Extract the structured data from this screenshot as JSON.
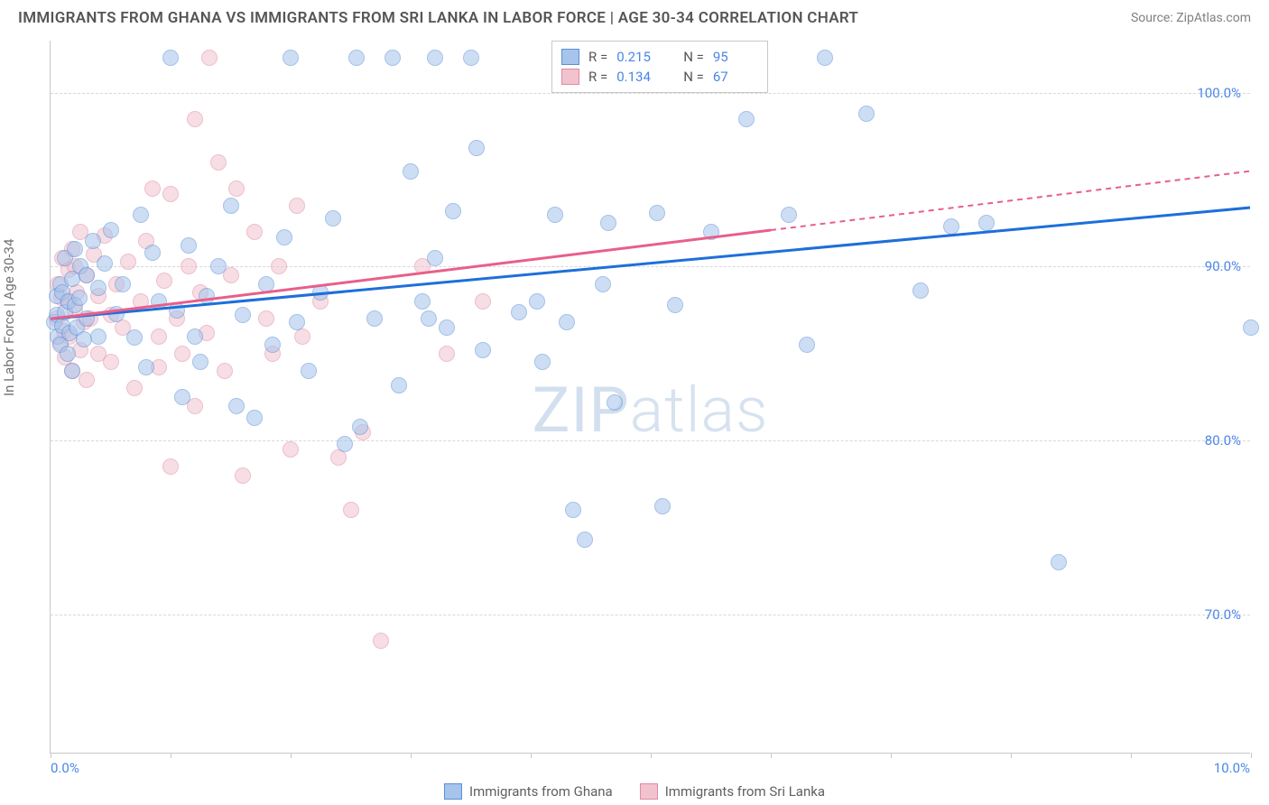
{
  "title": "IMMIGRANTS FROM GHANA VS IMMIGRANTS FROM SRI LANKA IN LABOR FORCE | AGE 30-34 CORRELATION CHART",
  "source": "Source: ZipAtlas.com",
  "y_axis_label": "In Labor Force | Age 30-34",
  "watermark_bold": "ZIP",
  "watermark_light": "atlas",
  "chart": {
    "type": "scatter",
    "xlim": [
      0,
      10
    ],
    "ylim": [
      62,
      103
    ],
    "x_ticks": [
      0,
      1,
      2,
      3,
      4,
      5,
      6,
      7,
      8,
      9,
      10
    ],
    "x_tick_labels_shown": {
      "0": "0.0%",
      "10": "10.0%"
    },
    "y_ticks": [
      70,
      80,
      90,
      100
    ],
    "y_tick_labels": [
      "70.0%",
      "80.0%",
      "90.0%",
      "100.0%"
    ],
    "background_color": "#ffffff",
    "grid_color": "#d8d8d8",
    "axis_color": "#c8c8c8",
    "marker_radius": 9,
    "marker_opacity": 0.55,
    "marker_border_width": 1
  },
  "series": [
    {
      "name": "Immigrants from Ghana",
      "fill_color": "#a6c4ec",
      "border_color": "#5b8fd6",
      "line_color": "#1e6fd9",
      "r_value": "0.215",
      "n_value": "95",
      "trend": {
        "x1": 0,
        "y1": 87.0,
        "x2": 10,
        "y2": 93.4,
        "dashed_from_x": null
      },
      "points": [
        [
          0.03,
          86.8
        ],
        [
          0.05,
          87.2
        ],
        [
          0.05,
          88.3
        ],
        [
          0.06,
          86.0
        ],
        [
          0.08,
          89.0
        ],
        [
          0.08,
          85.5
        ],
        [
          0.1,
          88.5
        ],
        [
          0.1,
          86.6
        ],
        [
          0.12,
          87.4
        ],
        [
          0.12,
          90.5
        ],
        [
          0.14,
          85.0
        ],
        [
          0.15,
          88.0
        ],
        [
          0.16,
          86.2
        ],
        [
          0.18,
          89.3
        ],
        [
          0.18,
          84.0
        ],
        [
          0.2,
          87.8
        ],
        [
          0.2,
          91.0
        ],
        [
          0.22,
          86.5
        ],
        [
          0.24,
          88.2
        ],
        [
          0.25,
          90.0
        ],
        [
          0.28,
          85.8
        ],
        [
          0.3,
          87.0
        ],
        [
          0.3,
          89.5
        ],
        [
          0.35,
          91.5
        ],
        [
          0.4,
          86.0
        ],
        [
          0.4,
          88.8
        ],
        [
          0.45,
          90.2
        ],
        [
          0.5,
          92.1
        ],
        [
          0.55,
          87.3
        ],
        [
          0.6,
          89.0
        ],
        [
          0.7,
          85.9
        ],
        [
          0.75,
          93.0
        ],
        [
          0.8,
          84.2
        ],
        [
          0.85,
          90.8
        ],
        [
          0.9,
          88.0
        ],
        [
          1.0,
          102.0
        ],
        [
          1.05,
          87.5
        ],
        [
          1.1,
          82.5
        ],
        [
          1.15,
          91.2
        ],
        [
          1.2,
          86.0
        ],
        [
          1.25,
          84.5
        ],
        [
          1.3,
          88.3
        ],
        [
          1.4,
          90.0
        ],
        [
          1.5,
          93.5
        ],
        [
          1.55,
          82.0
        ],
        [
          1.6,
          87.2
        ],
        [
          1.7,
          81.3
        ],
        [
          1.8,
          89.0
        ],
        [
          1.85,
          85.5
        ],
        [
          1.95,
          91.7
        ],
        [
          2.0,
          102.0
        ],
        [
          2.05,
          86.8
        ],
        [
          2.15,
          84.0
        ],
        [
          2.25,
          88.5
        ],
        [
          2.35,
          92.8
        ],
        [
          2.45,
          79.8
        ],
        [
          2.55,
          102.0
        ],
        [
          2.58,
          80.8
        ],
        [
          2.7,
          87.0
        ],
        [
          2.85,
          102.0
        ],
        [
          2.9,
          83.2
        ],
        [
          3.0,
          95.5
        ],
        [
          3.1,
          88.0
        ],
        [
          3.2,
          102.0
        ],
        [
          3.15,
          87.0
        ],
        [
          3.2,
          90.5
        ],
        [
          3.3,
          86.5
        ],
        [
          3.35,
          93.2
        ],
        [
          3.5,
          102.0
        ],
        [
          3.55,
          96.8
        ],
        [
          3.6,
          85.2
        ],
        [
          3.9,
          87.4
        ],
        [
          4.05,
          88.0
        ],
        [
          4.1,
          84.5
        ],
        [
          4.2,
          93.0
        ],
        [
          4.3,
          86.8
        ],
        [
          4.35,
          76.0
        ],
        [
          4.45,
          74.3
        ],
        [
          4.6,
          89.0
        ],
        [
          4.65,
          92.5
        ],
        [
          4.7,
          82.2
        ],
        [
          5.05,
          93.1
        ],
        [
          5.1,
          76.2
        ],
        [
          5.2,
          87.8
        ],
        [
          5.5,
          92.0
        ],
        [
          5.8,
          98.5
        ],
        [
          6.15,
          93.0
        ],
        [
          6.3,
          85.5
        ],
        [
          6.45,
          102.0
        ],
        [
          6.8,
          98.8
        ],
        [
          7.25,
          88.6
        ],
        [
          7.5,
          92.3
        ],
        [
          7.8,
          92.5
        ],
        [
          8.4,
          73.0
        ],
        [
          10.0,
          86.5
        ]
      ]
    },
    {
      "name": "Immigrants from Sri Lanka",
      "fill_color": "#f2c2cf",
      "border_color": "#e08ba3",
      "line_color": "#e85f8a",
      "r_value": "0.134",
      "n_value": "67",
      "trend": {
        "x1": 0,
        "y1": 87.0,
        "x2": 10,
        "y2": 95.5,
        "dashed_from_x": 6.0
      },
      "points": [
        [
          0.05,
          87.0
        ],
        [
          0.06,
          89.0
        ],
        [
          0.08,
          85.6
        ],
        [
          0.09,
          88.2
        ],
        [
          0.1,
          90.5
        ],
        [
          0.11,
          86.3
        ],
        [
          0.12,
          84.8
        ],
        [
          0.14,
          88.0
        ],
        [
          0.15,
          89.8
        ],
        [
          0.16,
          86.0
        ],
        [
          0.18,
          91.0
        ],
        [
          0.18,
          84.0
        ],
        [
          0.2,
          87.5
        ],
        [
          0.2,
          90.0
        ],
        [
          0.22,
          88.5
        ],
        [
          0.25,
          85.2
        ],
        [
          0.25,
          92.0
        ],
        [
          0.28,
          86.8
        ],
        [
          0.3,
          89.5
        ],
        [
          0.3,
          83.5
        ],
        [
          0.33,
          87.0
        ],
        [
          0.36,
          90.7
        ],
        [
          0.4,
          85.0
        ],
        [
          0.4,
          88.3
        ],
        [
          0.45,
          91.8
        ],
        [
          0.5,
          84.5
        ],
        [
          0.5,
          87.2
        ],
        [
          0.55,
          89.0
        ],
        [
          0.6,
          86.5
        ],
        [
          0.65,
          90.3
        ],
        [
          0.7,
          83.0
        ],
        [
          0.75,
          88.0
        ],
        [
          0.8,
          91.5
        ],
        [
          0.85,
          94.5
        ],
        [
          0.9,
          86.0
        ],
        [
          0.9,
          84.2
        ],
        [
          0.95,
          89.2
        ],
        [
          1.0,
          78.5
        ],
        [
          1.0,
          94.2
        ],
        [
          1.05,
          87.0
        ],
        [
          1.1,
          85.0
        ],
        [
          1.15,
          90.0
        ],
        [
          1.2,
          82.0
        ],
        [
          1.2,
          98.5
        ],
        [
          1.25,
          88.5
        ],
        [
          1.3,
          86.2
        ],
        [
          1.32,
          102.0
        ],
        [
          1.4,
          96.0
        ],
        [
          1.45,
          84.0
        ],
        [
          1.5,
          89.5
        ],
        [
          1.55,
          94.5
        ],
        [
          1.6,
          78.0
        ],
        [
          1.7,
          92.0
        ],
        [
          1.8,
          87.0
        ],
        [
          1.85,
          85.0
        ],
        [
          1.9,
          90.0
        ],
        [
          2.0,
          79.5
        ],
        [
          2.05,
          93.5
        ],
        [
          2.1,
          86.0
        ],
        [
          2.25,
          88.0
        ],
        [
          2.4,
          79.0
        ],
        [
          2.5,
          76.0
        ],
        [
          2.6,
          80.5
        ],
        [
          2.75,
          68.5
        ],
        [
          3.1,
          90.0
        ],
        [
          3.3,
          85.0
        ],
        [
          3.6,
          88.0
        ]
      ]
    }
  ],
  "legend_bottom": [
    {
      "label": "Immigrants from Ghana",
      "fill": "#a6c4ec",
      "border": "#5b8fd6"
    },
    {
      "label": "Immigrants from Sri Lanka",
      "fill": "#f2c2cf",
      "border": "#e08ba3"
    }
  ]
}
